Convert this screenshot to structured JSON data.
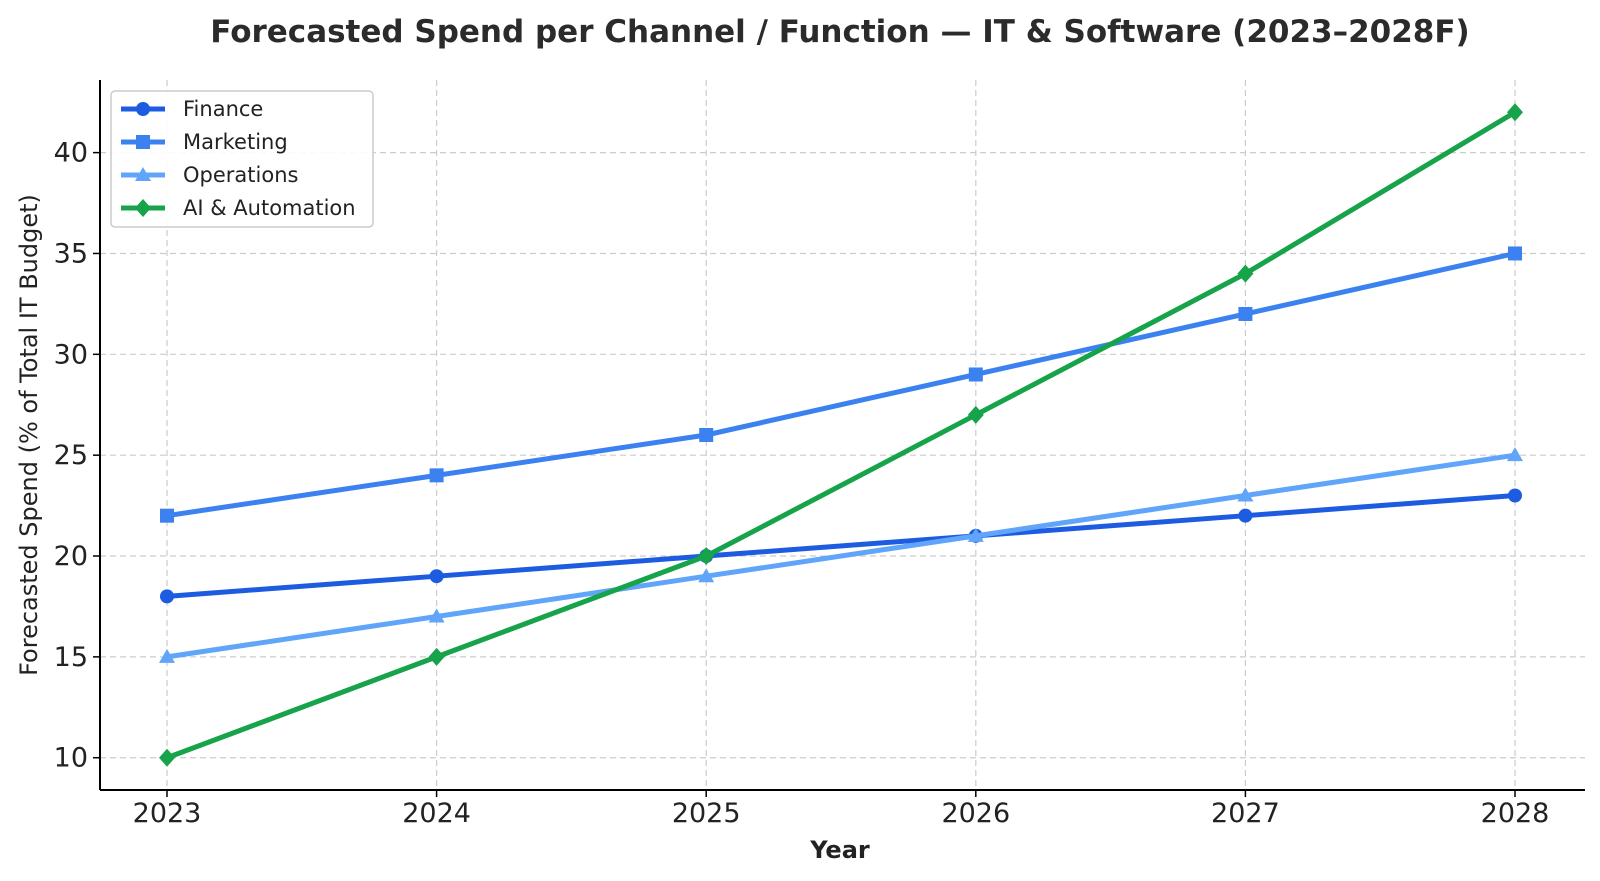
{
  "chart_data": {
    "type": "line",
    "title": "Forecasted Spend per Channel / Function — IT & Software (2023–2028F)",
    "xlabel": "Year",
    "ylabel": "Forecasted Spend (% of Total IT Budget)",
    "categories": [
      "2023",
      "2024",
      "2025",
      "2026",
      "2027",
      "2028"
    ],
    "yticks": [
      10,
      15,
      20,
      25,
      30,
      35,
      40
    ],
    "ylim": [
      8.4,
      43.6
    ],
    "grid": true,
    "legend_position": "top-left",
    "series": [
      {
        "name": "Finance",
        "values": [
          18,
          19,
          20,
          21,
          22,
          23
        ],
        "color": "#1d5be0",
        "marker": "circle"
      },
      {
        "name": "Marketing",
        "values": [
          22,
          24,
          26,
          29,
          32,
          35
        ],
        "color": "#3b82f0",
        "marker": "square"
      },
      {
        "name": "Operations",
        "values": [
          15,
          17,
          19,
          21,
          23,
          25
        ],
        "color": "#60a5fa",
        "marker": "triangle"
      },
      {
        "name": "AI & Automation",
        "values": [
          10,
          15,
          20,
          27,
          34,
          42
        ],
        "color": "#16a34a",
        "marker": "diamond"
      }
    ]
  }
}
